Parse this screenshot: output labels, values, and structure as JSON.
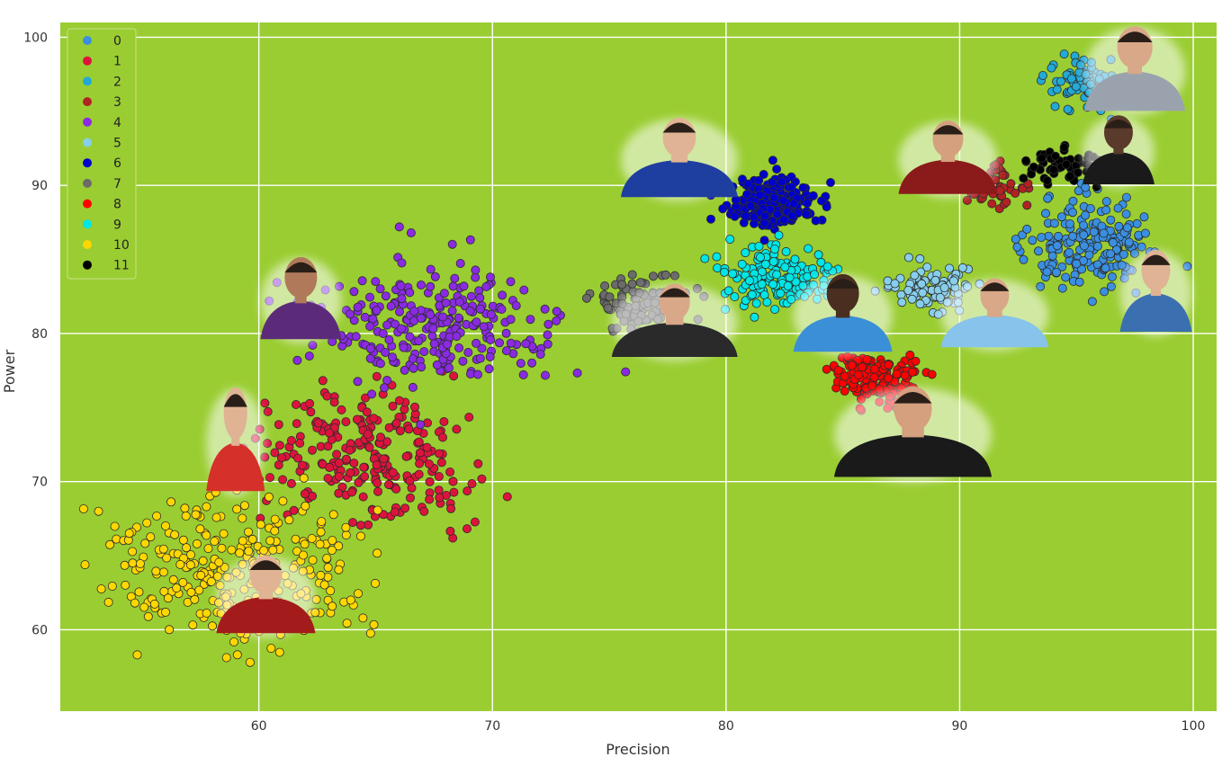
{
  "chart_data": {
    "type": "scatter",
    "xlabel": "Precision",
    "ylabel": "Power",
    "xlim": [
      51.5,
      101
    ],
    "ylim": [
      54.5,
      101
    ],
    "xticks": [
      60,
      70,
      80,
      90,
      100
    ],
    "yticks": [
      60,
      70,
      80,
      90,
      100
    ],
    "grid": true,
    "background": "#9acd32",
    "legend_position": "top-left",
    "clusters": [
      {
        "name": "0",
        "color": "#3a8fe0",
        "cx": 95.6,
        "cy": 86.0,
        "sx": 1.5,
        "sy": 1.5,
        "n": 190
      },
      {
        "name": "1",
        "color": "#dc143c",
        "cx": 64.5,
        "cy": 71.8,
        "sx": 2.4,
        "sy": 2.2,
        "n": 250
      },
      {
        "name": "2",
        "color": "#22a9d6",
        "cx": 95.3,
        "cy": 97.0,
        "sx": 0.8,
        "sy": 0.8,
        "n": 90
      },
      {
        "name": "3",
        "color": "#b22222",
        "cx": 91.8,
        "cy": 90.0,
        "sx": 0.6,
        "sy": 0.7,
        "n": 45
      },
      {
        "name": "4",
        "color": "#8a2be2",
        "cx": 67.5,
        "cy": 80.5,
        "sx": 2.6,
        "sy": 2.2,
        "n": 270
      },
      {
        "name": "5",
        "color": "#87ceeb",
        "cx": 89.0,
        "cy": 83.0,
        "sx": 1.0,
        "sy": 0.8,
        "n": 90
      },
      {
        "name": "6",
        "color": "#0000cd",
        "cx": 82.0,
        "cy": 88.8,
        "sx": 1.0,
        "sy": 0.9,
        "n": 210
      },
      {
        "name": "7",
        "color": "#6b6b6b",
        "cx": 76.5,
        "cy": 82.0,
        "sx": 1.0,
        "sy": 0.9,
        "n": 110
      },
      {
        "name": "8",
        "color": "#ff0000",
        "cx": 86.5,
        "cy": 77.0,
        "sx": 1.1,
        "sy": 0.8,
        "n": 160
      },
      {
        "name": "9",
        "color": "#00e5e5",
        "cx": 82.5,
        "cy": 83.6,
        "sx": 1.2,
        "sy": 1.1,
        "n": 150
      },
      {
        "name": "10",
        "color": "#ffd700",
        "cx": 59.2,
        "cy": 64.0,
        "sx": 2.6,
        "sy": 2.6,
        "n": 310
      },
      {
        "name": "11",
        "color": "#000000",
        "cx": 94.6,
        "cy": 91.2,
        "sx": 0.9,
        "sy": 0.6,
        "n": 60
      }
    ]
  }
}
